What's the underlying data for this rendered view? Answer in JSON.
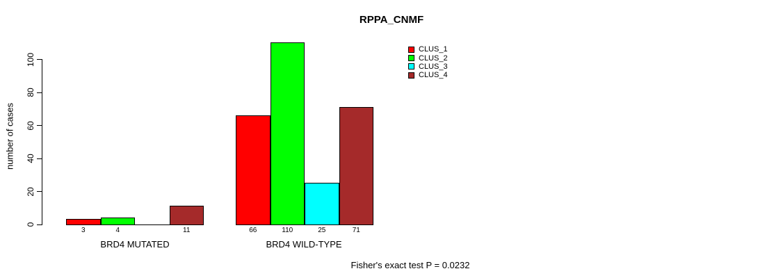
{
  "title": "RPPA_CNMF",
  "footnote": "Fisher's exact test P = 0.0232",
  "legend": {
    "items": [
      {
        "label": "CLUS_1",
        "color": "#FF0000"
      },
      {
        "label": "CLUS_2",
        "color": "#00FF00"
      },
      {
        "label": "CLUS_3",
        "color": "#00FFFF"
      },
      {
        "label": "CLUS_4",
        "color": "#A52A2A"
      }
    ]
  },
  "chart_data": {
    "type": "bar",
    "title": "RPPA_CNMF",
    "xlabel": "",
    "ylabel": "number of cases",
    "ylim": [
      0,
      110
    ],
    "yticks": [
      0,
      20,
      40,
      60,
      80,
      100
    ],
    "grid": false,
    "legend_position": "top-right",
    "categories": [
      "BRD4 MUTATED",
      "BRD4 WILD-TYPE"
    ],
    "series": [
      {
        "name": "CLUS_1",
        "color": "#FF0000",
        "values": [
          3,
          66
        ]
      },
      {
        "name": "CLUS_2",
        "color": "#00FF00",
        "values": [
          4,
          110
        ]
      },
      {
        "name": "CLUS_3",
        "color": "#00FFFF",
        "values": [
          0,
          25
        ]
      },
      {
        "name": "CLUS_4",
        "color": "#A52A2A",
        "values": [
          11,
          71
        ]
      }
    ],
    "bar_value_labels": [
      [
        "3",
        "4",
        "",
        "11"
      ],
      [
        "66",
        "110",
        "25",
        "71"
      ]
    ],
    "annotation": "Fisher's exact test P = 0.0232"
  }
}
